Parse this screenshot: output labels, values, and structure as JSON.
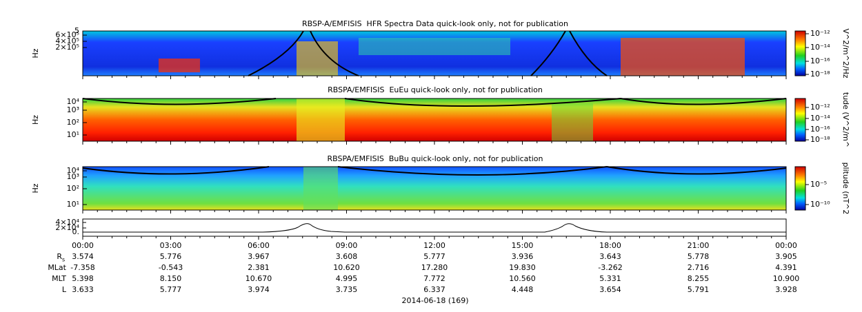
{
  "panels": [
    {
      "title": "RBSP-A/EMFISIS  HFR Spectra Data quick-look only, not for publication",
      "ylabel": "Hz",
      "yticks": [
        "5",
        "6×10⁵",
        "4×10⁵",
        "2×10⁵"
      ],
      "colorbar_label": "V^2/m^2/Hz",
      "colorbar_ticks": [
        "10⁻¹²",
        "10⁻¹⁴",
        "10⁻¹⁶",
        "10⁻¹⁸"
      ]
    },
    {
      "title": "RBSPA/EMFISIS  EuEu quick-look only, not for publication",
      "ylabel": "Hz",
      "yticks": [
        "10⁴",
        "10³",
        "10²",
        "10¹"
      ],
      "colorbar_label": "tude (V^2/m^",
      "colorbar_ticks": [
        "10⁻¹²",
        "10⁻¹⁴",
        "10⁻¹⁶",
        "10⁻¹⁸"
      ]
    },
    {
      "title": "RBSPA/EMFISIS  BuBu quick-look only, not for publication",
      "ylabel": "Hz",
      "yticks": [
        "10⁴",
        "10³",
        "10²",
        "10¹"
      ],
      "colorbar_label": "plitude (nT^2",
      "colorbar_ticks": [
        "10⁻⁵",
        "10⁻¹⁰"
      ]
    }
  ],
  "line_panel": {
    "yticks": [
      "4×10⁴",
      "2×10⁴",
      "0."
    ]
  },
  "ephemeris": {
    "times": [
      "00:00",
      "03:00",
      "06:00",
      "09:00",
      "12:00",
      "15:00",
      "18:00",
      "21:00",
      "00:00"
    ],
    "rows": [
      {
        "label": "R",
        "subscript": "s",
        "values": [
          "3.574",
          "5.776",
          "3.967",
          "3.608",
          "5.777",
          "3.936",
          "3.643",
          "5.778",
          "3.905"
        ]
      },
      {
        "label": "MLat",
        "values": [
          "-7.358",
          "-0.543",
          "2.381",
          "10.620",
          "17.280",
          "19.830",
          "-3.262",
          "2.716",
          "4.391"
        ]
      },
      {
        "label": "MLT",
        "values": [
          "5.398",
          "8.150",
          "10.670",
          "4.995",
          "7.772",
          "10.560",
          "5.331",
          "8.255",
          "10.900"
        ]
      },
      {
        "label": "L",
        "values": [
          "3.633",
          "5.777",
          "3.974",
          "3.735",
          "6.337",
          "4.448",
          "3.654",
          "5.791",
          "3.928"
        ]
      }
    ]
  },
  "date": "2014-06-18 (169)"
}
